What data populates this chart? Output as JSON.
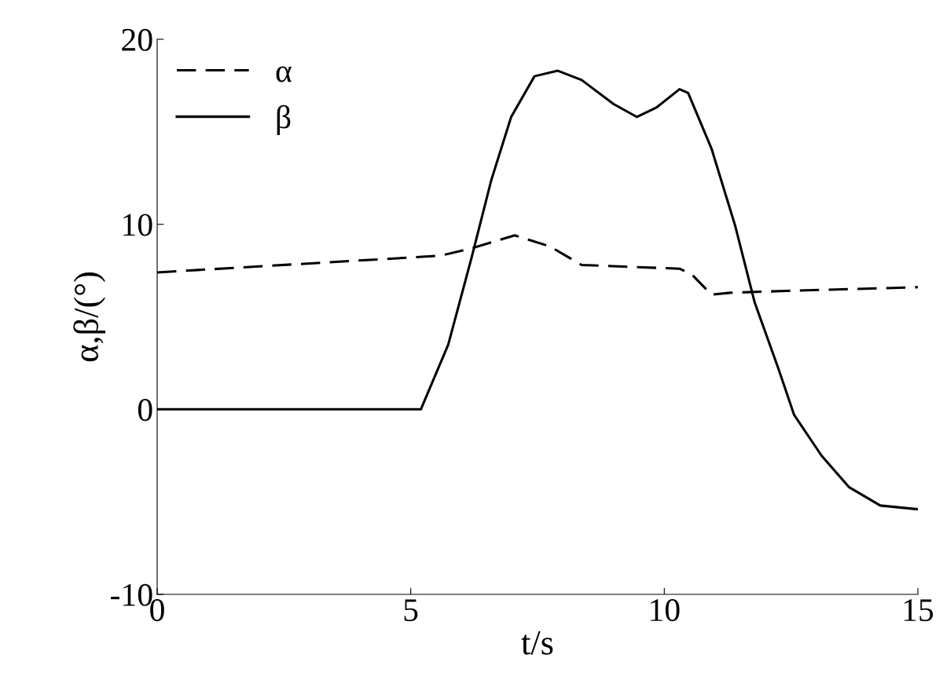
{
  "chart_data": {
    "type": "line",
    "xlabel": "t/s",
    "ylabel": "α,β/(°)",
    "xlim": [
      0,
      15
    ],
    "ylim": [
      -10,
      20
    ],
    "xticks": [
      0,
      5,
      10,
      15
    ],
    "yticks": [
      -10,
      0,
      10,
      20
    ],
    "grid": false,
    "legend": "top left",
    "marker": "none",
    "series": [
      {
        "name": "α",
        "color": "#000000",
        "line_style": "dashed",
        "x": [
          0,
          5.58,
          6.2,
          7.05,
          7.75,
          8.37,
          10.3,
          10.54,
          10.93,
          11.3,
          12.4,
          15
        ],
        "values": [
          7.4,
          8.3,
          8.7,
          9.4,
          8.8,
          7.8,
          7.6,
          7.3,
          6.2,
          6.3,
          6.4,
          6.6
        ]
      },
      {
        "name": "β",
        "color": "#000000",
        "line_style": "solid",
        "x": [
          0,
          5.2,
          5.74,
          6.2,
          6.59,
          6.98,
          7.44,
          7.9,
          8.37,
          9.0,
          9.46,
          9.84,
          10.3,
          10.47,
          10.93,
          11.4,
          11.78,
          12.25,
          12.56,
          13.1,
          13.64,
          14.26,
          15
        ],
        "values": [
          0,
          0,
          3.5,
          8.2,
          12.4,
          15.8,
          18.0,
          18.3,
          17.8,
          16.5,
          15.8,
          16.3,
          17.3,
          17.1,
          14.1,
          9.9,
          5.8,
          2.2,
          -0.3,
          -2.5,
          -4.2,
          -5.2,
          -5.4
        ]
      }
    ]
  }
}
